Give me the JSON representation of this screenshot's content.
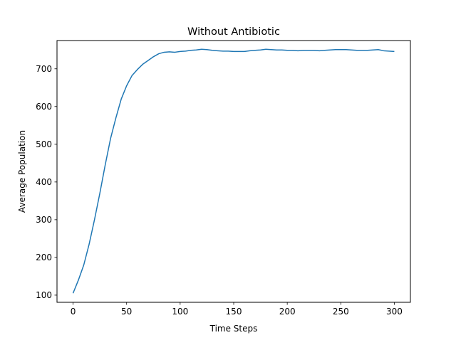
{
  "chart_data": {
    "type": "line",
    "title": "Without Antibiotic",
    "xlabel": "Time Steps",
    "ylabel": "Average Population",
    "xlim": [
      -15,
      315
    ],
    "ylim": [
      81,
      775
    ],
    "grid": false,
    "legend": "none",
    "x_ticks": [
      0,
      50,
      100,
      150,
      200,
      250,
      300
    ],
    "y_ticks": [
      100,
      200,
      300,
      400,
      500,
      600,
      700
    ],
    "x_tick_labels": [
      "0",
      "50",
      "100",
      "150",
      "200",
      "250",
      "300"
    ],
    "y_tick_labels": [
      "100",
      "200",
      "300",
      "400",
      "500",
      "600",
      "700"
    ],
    "series": [
      {
        "name": "Average Population",
        "color": "#1f77b4",
        "x": [
          0,
          5,
          10,
          15,
          20,
          25,
          30,
          35,
          40,
          45,
          50,
          55,
          60,
          65,
          70,
          75,
          80,
          85,
          90,
          95,
          100,
          105,
          110,
          115,
          120,
          125,
          130,
          135,
          140,
          145,
          150,
          155,
          160,
          165,
          170,
          175,
          180,
          185,
          190,
          195,
          200,
          205,
          210,
          215,
          220,
          225,
          230,
          235,
          240,
          245,
          250,
          255,
          260,
          265,
          270,
          275,
          280,
          285,
          290,
          295,
          300
        ],
        "y": [
          105,
          140,
          180,
          235,
          300,
          370,
          445,
          515,
          570,
          620,
          655,
          682,
          698,
          712,
          722,
          732,
          740,
          744,
          745,
          744,
          746,
          747,
          749,
          750,
          752,
          751,
          749,
          748,
          747,
          747,
          746,
          746,
          746,
          748,
          749,
          750,
          752,
          751,
          750,
          750,
          749,
          749,
          748,
          749,
          749,
          749,
          748,
          749,
          750,
          751,
          751,
          751,
          750,
          749,
          749,
          749,
          750,
          751,
          748,
          747,
          746
        ]
      }
    ]
  }
}
